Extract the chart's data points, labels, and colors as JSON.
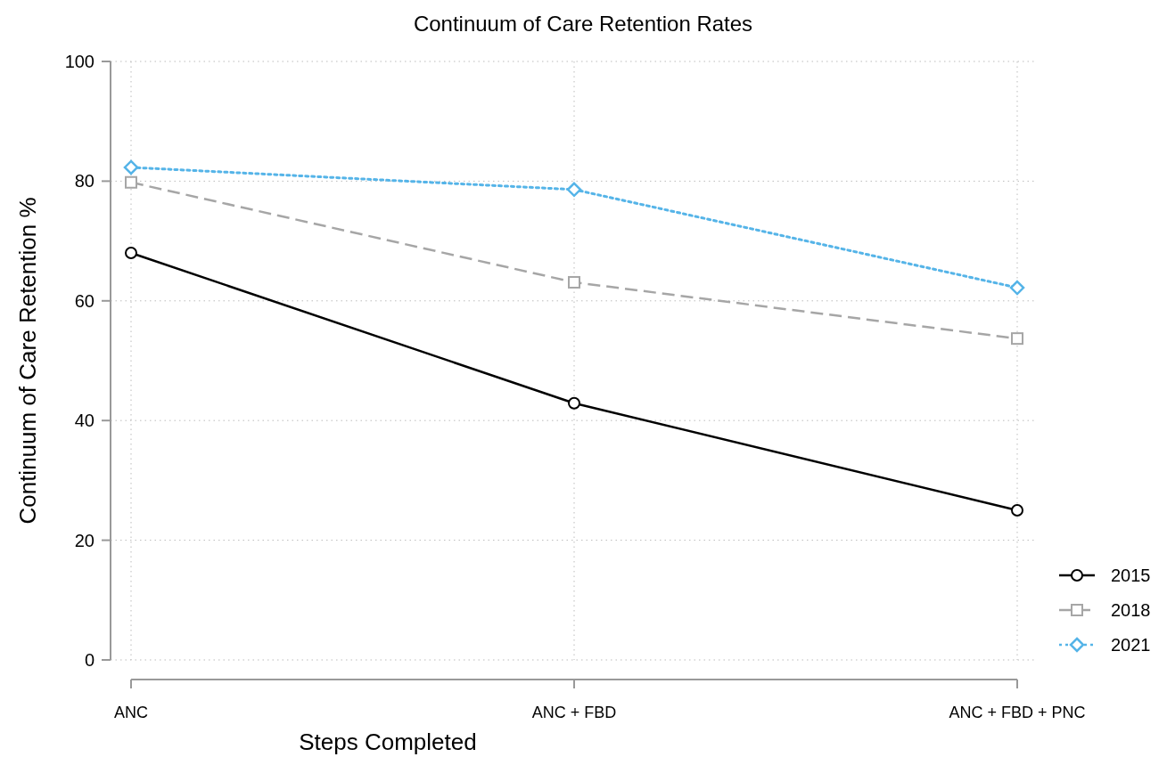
{
  "chart_data": {
    "type": "line",
    "title": "Continuum of Care Retention Rates",
    "xlabel": "Steps Completed",
    "ylabel": "Continuum of Care Retention %",
    "categories": [
      "ANC",
      "ANC + FBD",
      "ANC + FBD + PNC"
    ],
    "series": [
      {
        "name": "2015",
        "color": "#000000",
        "values": [
          68.0,
          42.9,
          25.0
        ],
        "marker": "circle",
        "line_style": "solid"
      },
      {
        "name": "2018",
        "color": "#a6a6a6",
        "values": [
          79.8,
          63.1,
          53.7
        ],
        "marker": "square",
        "line_style": "dashed"
      },
      {
        "name": "2021",
        "color": "#55b4e8",
        "values": [
          82.3,
          78.6,
          62.2
        ],
        "marker": "diamond",
        "line_style": "dotted"
      }
    ],
    "ylim": [
      0,
      100
    ],
    "yticks": [
      0,
      20,
      40,
      60,
      80,
      100
    ],
    "grid": true,
    "legend": "bottom right"
  }
}
